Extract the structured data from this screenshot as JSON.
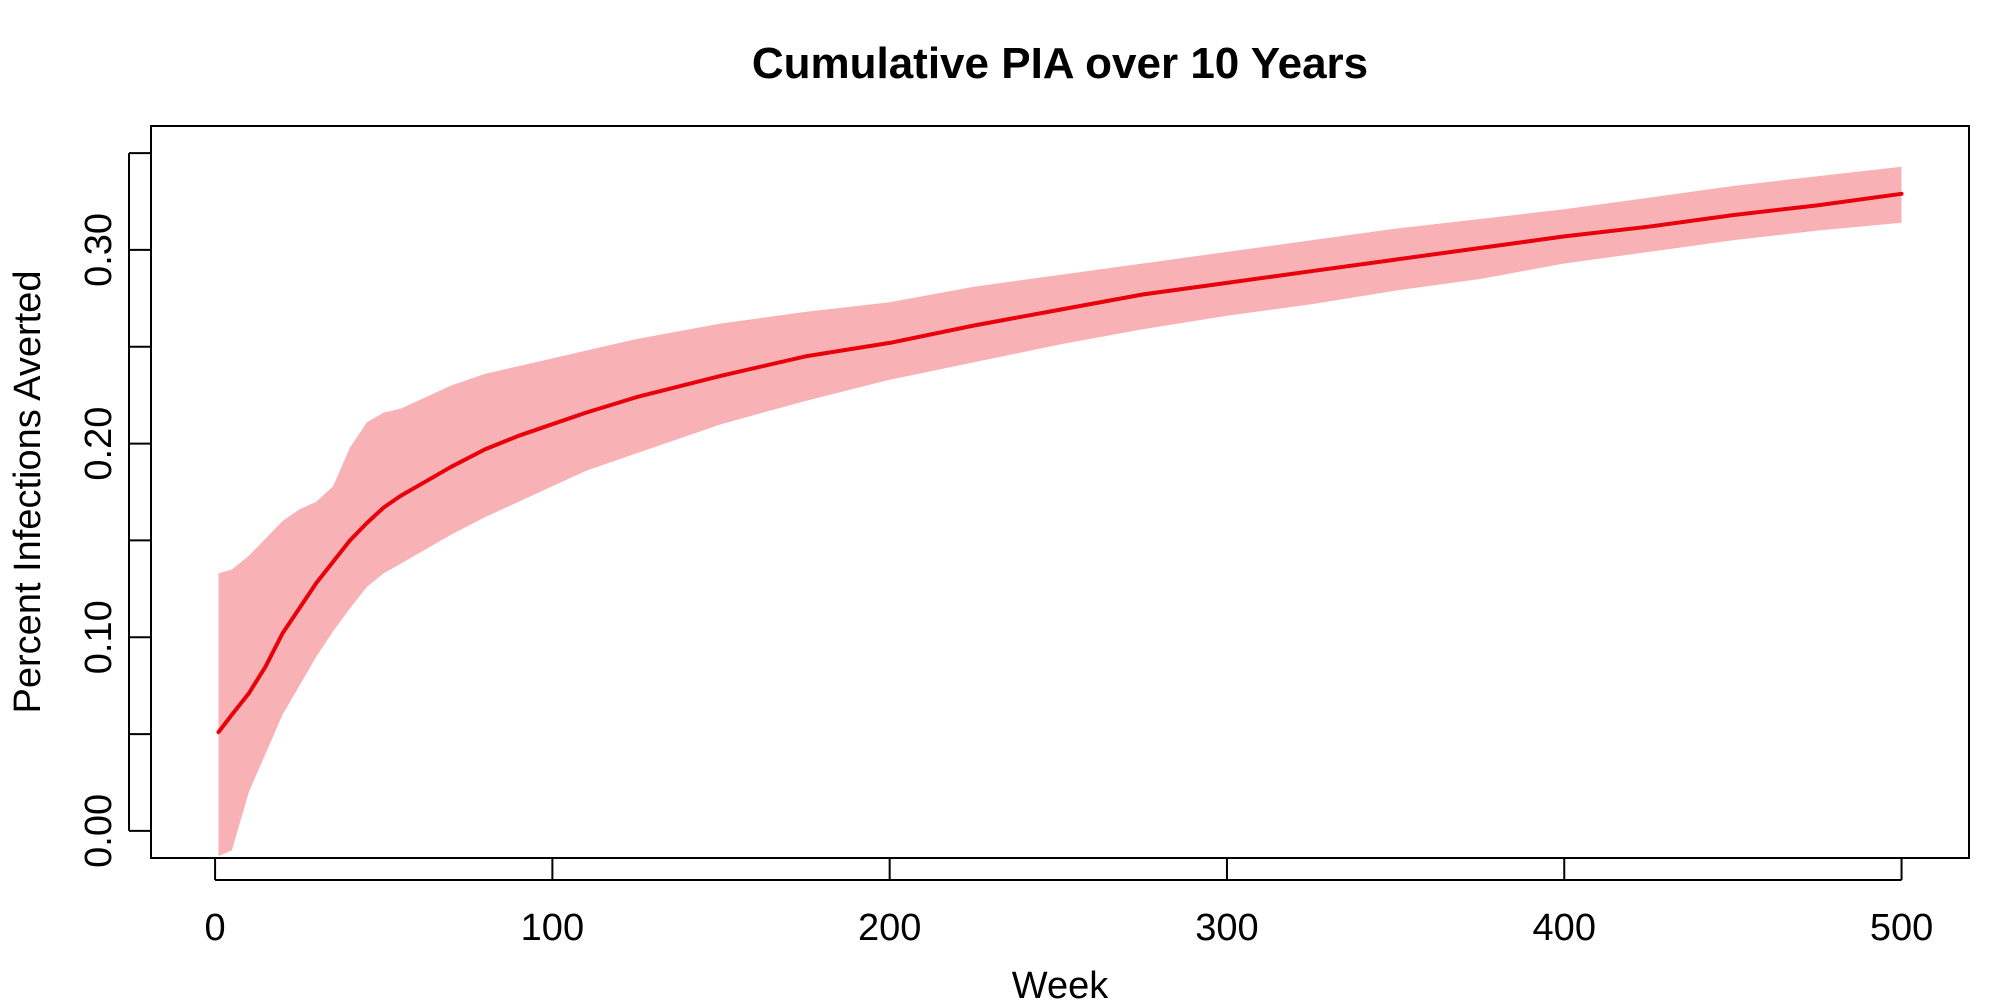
{
  "chart_data": {
    "type": "line",
    "title": "Cumulative PIA over 10 Years",
    "xlabel": "Week",
    "ylabel": "Percent Infections Averted",
    "xlim": [
      -19,
      520
    ],
    "ylim": [
      -0.014,
      0.364
    ],
    "x_ticks": [
      0,
      100,
      200,
      300,
      400,
      500
    ],
    "x_tick_labels": [
      "0",
      "100",
      "200",
      "300",
      "400",
      "500"
    ],
    "y_ticks": [
      0.0,
      0.05,
      0.1,
      0.15,
      0.2,
      0.25,
      0.3,
      0.35
    ],
    "y_tick_labels": [
      "0.00",
      "",
      "0.10",
      "",
      "0.20",
      "",
      "0.30",
      ""
    ],
    "grid": false,
    "colors": {
      "line": "#e8000b",
      "band": "#f8b2b5"
    },
    "series": [
      {
        "role": "mean",
        "x": [
          1,
          5,
          10,
          15,
          20,
          25,
          30,
          35,
          40,
          45,
          50,
          55,
          60,
          70,
          80,
          90,
          100,
          110,
          125,
          150,
          175,
          200,
          225,
          250,
          275,
          300,
          325,
          350,
          375,
          400,
          425,
          450,
          475,
          500
        ],
        "y": [
          0.051,
          0.06,
          0.071,
          0.085,
          0.102,
          0.115,
          0.128,
          0.139,
          0.15,
          0.159,
          0.167,
          0.173,
          0.178,
          0.188,
          0.197,
          0.204,
          0.21,
          0.216,
          0.224,
          0.235,
          0.245,
          0.252,
          0.261,
          0.269,
          0.277,
          0.283,
          0.289,
          0.295,
          0.301,
          0.307,
          0.312,
          0.318,
          0.323,
          0.329
        ]
      },
      {
        "role": "upper",
        "x": [
          1,
          5,
          10,
          15,
          20,
          25,
          30,
          35,
          40,
          45,
          50,
          55,
          60,
          70,
          80,
          90,
          100,
          110,
          125,
          150,
          175,
          200,
          225,
          250,
          275,
          300,
          325,
          350,
          375,
          400,
          425,
          450,
          475,
          500
        ],
        "y": [
          0.133,
          0.135,
          0.142,
          0.151,
          0.16,
          0.166,
          0.17,
          0.178,
          0.198,
          0.211,
          0.216,
          0.218,
          0.222,
          0.23,
          0.236,
          0.24,
          0.244,
          0.248,
          0.254,
          0.262,
          0.268,
          0.273,
          0.281,
          0.287,
          0.293,
          0.299,
          0.305,
          0.311,
          0.316,
          0.321,
          0.327,
          0.333,
          0.338,
          0.343
        ]
      },
      {
        "role": "lower",
        "x": [
          1,
          5,
          10,
          15,
          20,
          25,
          30,
          35,
          40,
          45,
          50,
          55,
          60,
          70,
          80,
          90,
          100,
          110,
          125,
          150,
          175,
          200,
          225,
          250,
          275,
          300,
          325,
          350,
          375,
          400,
          425,
          450,
          475,
          500
        ],
        "y": [
          -0.013,
          -0.01,
          0.02,
          0.04,
          0.06,
          0.075,
          0.09,
          0.103,
          0.115,
          0.126,
          0.133,
          0.138,
          0.143,
          0.153,
          0.162,
          0.17,
          0.178,
          0.186,
          0.195,
          0.21,
          0.222,
          0.233,
          0.242,
          0.251,
          0.259,
          0.266,
          0.272,
          0.279,
          0.285,
          0.293,
          0.299,
          0.305,
          0.31,
          0.314
        ]
      }
    ]
  }
}
